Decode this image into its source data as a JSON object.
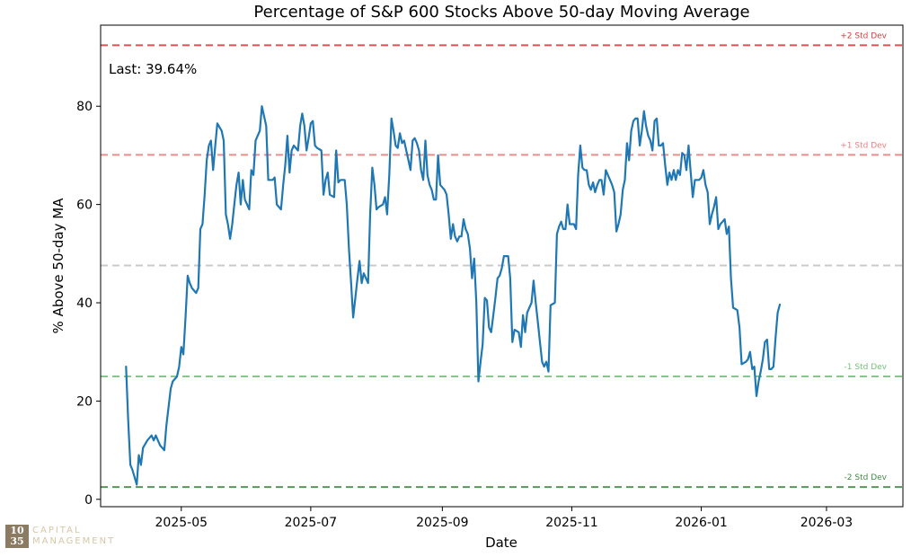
{
  "chart_data": {
    "type": "line",
    "title": "Percentage of S&P 600 Stocks Above 50-day Moving Average",
    "xlabel": "Date",
    "ylabel": "% Above 50-day MA",
    "ylim": [
      -1.5,
      96.5
    ],
    "xlim": [
      -12,
      366
    ],
    "yticks": [
      0,
      20,
      40,
      60,
      80
    ],
    "xticks": [
      {
        "label": "2025-05",
        "day": 26
      },
      {
        "label": "2025-07",
        "day": 87
      },
      {
        "label": "2025-09",
        "day": 149
      },
      {
        "label": "2025-11",
        "day": 210
      },
      {
        "label": "2026-01",
        "day": 271
      },
      {
        "label": "2026-03",
        "day": 330
      }
    ],
    "x_origin": "2025-04-05",
    "annotation": "Last: 39.64%",
    "reference_lines": [
      {
        "name": "+2 Std Dev",
        "value": 92.4,
        "color": "#d62728",
        "label": "+2 Std Dev"
      },
      {
        "name": "+1 Std Dev",
        "value": 70.1,
        "color": "#e57373",
        "label": "+1 Std Dev"
      },
      {
        "name": "Mean",
        "value": 47.6,
        "color": "#bdbdbd",
        "label": ""
      },
      {
        "name": "-1 Std Dev",
        "value": 25.0,
        "color": "#66bb6a",
        "label": "-1 Std Dev"
      },
      {
        "name": "-2 Std Dev",
        "value": 2.5,
        "color": "#2e7d32",
        "label": "-2 Std Dev"
      }
    ],
    "series": [
      {
        "name": "% Above 50-day MA",
        "color": "#1f77b4",
        "points": [
          [
            0,
            27
          ],
          [
            1,
            16
          ],
          [
            2,
            7
          ],
          [
            3,
            6
          ],
          [
            5,
            3
          ],
          [
            6,
            9
          ],
          [
            7,
            7
          ],
          [
            8,
            10.5
          ],
          [
            10,
            12
          ],
          [
            12,
            13
          ],
          [
            13,
            12
          ],
          [
            14,
            13
          ],
          [
            16,
            11
          ],
          [
            18,
            10
          ],
          [
            19,
            15
          ],
          [
            21,
            22.5
          ],
          [
            22,
            24
          ],
          [
            24,
            25
          ],
          [
            25,
            27
          ],
          [
            26,
            31
          ],
          [
            27,
            29.5
          ],
          [
            28,
            37
          ],
          [
            29,
            45.5
          ],
          [
            30,
            44
          ],
          [
            31,
            43
          ],
          [
            33,
            42
          ],
          [
            34,
            43
          ],
          [
            35,
            55
          ],
          [
            36,
            56
          ],
          [
            37,
            62
          ],
          [
            38,
            69
          ],
          [
            39,
            72
          ],
          [
            40,
            73
          ],
          [
            41,
            67
          ],
          [
            42,
            72
          ],
          [
            43,
            76.5
          ],
          [
            45,
            75
          ],
          [
            46,
            73
          ],
          [
            47,
            58
          ],
          [
            48,
            56
          ],
          [
            49,
            53
          ],
          [
            50,
            56
          ],
          [
            51,
            60
          ],
          [
            52,
            64
          ],
          [
            53,
            66.5
          ],
          [
            54,
            60
          ],
          [
            55,
            65
          ],
          [
            56,
            61
          ],
          [
            58,
            59
          ],
          [
            59,
            67
          ],
          [
            60,
            66
          ],
          [
            61,
            73
          ],
          [
            62,
            74
          ],
          [
            63,
            75
          ],
          [
            64,
            80
          ],
          [
            65,
            78
          ],
          [
            66,
            76
          ],
          [
            67,
            65
          ],
          [
            69,
            65
          ],
          [
            70,
            65.5
          ],
          [
            71,
            60
          ],
          [
            73,
            59
          ],
          [
            74,
            64
          ],
          [
            75,
            68
          ],
          [
            76,
            74
          ],
          [
            77,
            66.5
          ],
          [
            78,
            71
          ],
          [
            79,
            72
          ],
          [
            81,
            71
          ],
          [
            82,
            76
          ],
          [
            83,
            78.5
          ],
          [
            84,
            76
          ],
          [
            85,
            71
          ],
          [
            86,
            73.5
          ],
          [
            87,
            76.5
          ],
          [
            88,
            77
          ],
          [
            89,
            72
          ],
          [
            90,
            71.5
          ],
          [
            92,
            71
          ],
          [
            93,
            62
          ],
          [
            94,
            65
          ],
          [
            95,
            66.5
          ],
          [
            96,
            62
          ],
          [
            98,
            61.5
          ],
          [
            99,
            71
          ],
          [
            100,
            64.5
          ],
          [
            101,
            65
          ],
          [
            103,
            65
          ],
          [
            104,
            60
          ],
          [
            105,
            51
          ],
          [
            106,
            44
          ],
          [
            107,
            37
          ],
          [
            108,
            41
          ],
          [
            109,
            45
          ],
          [
            110,
            48.5
          ],
          [
            111,
            44
          ],
          [
            112,
            46
          ],
          [
            113,
            45
          ],
          [
            114,
            44
          ],
          [
            115,
            58
          ],
          [
            116,
            67.5
          ],
          [
            117,
            64
          ],
          [
            118,
            59
          ],
          [
            119,
            59.5
          ],
          [
            121,
            60
          ],
          [
            122,
            61.5
          ],
          [
            123,
            58
          ],
          [
            124,
            66
          ],
          [
            125,
            77.5
          ],
          [
            126,
            75
          ],
          [
            127,
            72
          ],
          [
            128,
            71.5
          ],
          [
            129,
            74.5
          ],
          [
            130,
            72.5
          ],
          [
            131,
            73
          ],
          [
            132,
            71
          ],
          [
            133,
            69
          ],
          [
            134,
            67
          ],
          [
            135,
            73
          ],
          [
            136,
            73.5
          ],
          [
            137,
            72.5
          ],
          [
            138,
            71
          ],
          [
            139,
            67
          ],
          [
            140,
            65
          ],
          [
            141,
            73
          ],
          [
            142,
            66
          ],
          [
            143,
            64
          ],
          [
            144,
            63
          ],
          [
            145,
            61
          ],
          [
            146,
            61
          ],
          [
            147,
            70
          ],
          [
            148,
            64
          ],
          [
            150,
            63
          ],
          [
            151,
            62
          ],
          [
            152,
            58
          ],
          [
            153,
            53
          ],
          [
            154,
            56
          ],
          [
            155,
            53.5
          ],
          [
            156,
            52.5
          ],
          [
            157,
            53.5
          ],
          [
            158,
            53.5
          ],
          [
            159,
            57
          ],
          [
            160,
            55
          ],
          [
            161,
            54
          ],
          [
            162,
            51
          ],
          [
            163,
            45
          ],
          [
            164,
            49
          ],
          [
            165,
            40
          ],
          [
            166,
            24
          ],
          [
            167,
            28
          ],
          [
            168,
            31.5
          ],
          [
            169,
            41
          ],
          [
            170,
            40.5
          ],
          [
            171,
            35
          ],
          [
            172,
            34
          ],
          [
            173,
            37.5
          ],
          [
            174,
            41
          ],
          [
            175,
            45
          ],
          [
            176,
            45.5
          ],
          [
            177,
            47
          ],
          [
            178,
            49.5
          ],
          [
            180,
            49.5
          ],
          [
            181,
            45
          ],
          [
            182,
            32
          ],
          [
            183,
            34.5
          ],
          [
            185,
            34
          ],
          [
            186,
            31
          ],
          [
            187,
            37.5
          ],
          [
            188,
            34
          ],
          [
            189,
            38
          ],
          [
            190,
            39
          ],
          [
            191,
            40
          ],
          [
            192,
            44.5
          ],
          [
            193,
            40
          ],
          [
            194,
            36
          ],
          [
            195,
            32
          ],
          [
            196,
            28
          ],
          [
            197,
            27
          ],
          [
            198,
            28
          ],
          [
            199,
            26
          ],
          [
            200,
            39.5
          ],
          [
            202,
            40
          ],
          [
            203,
            54
          ],
          [
            204,
            55.5
          ],
          [
            205,
            56.5
          ],
          [
            206,
            55
          ],
          [
            207,
            55
          ],
          [
            208,
            60
          ],
          [
            209,
            56
          ],
          [
            211,
            56
          ],
          [
            212,
            55
          ],
          [
            213,
            66
          ],
          [
            214,
            72
          ],
          [
            215,
            67.5
          ],
          [
            216,
            67
          ],
          [
            217,
            67
          ],
          [
            218,
            64
          ],
          [
            219,
            63
          ],
          [
            220,
            64.5
          ],
          [
            221,
            62.5
          ],
          [
            222,
            64
          ],
          [
            223,
            65
          ],
          [
            224,
            65
          ],
          [
            225,
            62
          ],
          [
            226,
            67
          ],
          [
            227,
            66
          ],
          [
            228,
            65
          ],
          [
            229,
            64
          ],
          [
            230,
            62.5
          ],
          [
            231,
            54.5
          ],
          [
            232,
            56
          ],
          [
            233,
            58
          ],
          [
            234,
            63
          ],
          [
            235,
            65
          ],
          [
            236,
            72.5
          ],
          [
            237,
            69
          ],
          [
            238,
            75
          ],
          [
            239,
            77
          ],
          [
            240,
            77.5
          ],
          [
            241,
            77.5
          ],
          [
            242,
            72
          ],
          [
            243,
            75
          ],
          [
            244,
            79
          ],
          [
            245,
            76
          ],
          [
            246,
            74
          ],
          [
            247,
            73
          ],
          [
            248,
            71
          ],
          [
            249,
            77
          ],
          [
            250,
            77.5
          ],
          [
            251,
            72
          ],
          [
            252,
            72
          ],
          [
            253,
            72.5
          ],
          [
            254,
            68
          ],
          [
            255,
            64
          ],
          [
            256,
            66.5
          ],
          [
            257,
            65
          ],
          [
            258,
            67
          ],
          [
            259,
            65
          ],
          [
            260,
            67
          ],
          [
            261,
            66
          ],
          [
            262,
            70.5
          ],
          [
            263,
            70
          ],
          [
            264,
            67
          ],
          [
            265,
            72
          ],
          [
            266,
            66.5
          ],
          [
            267,
            61.5
          ],
          [
            268,
            65
          ],
          [
            270,
            65
          ],
          [
            271,
            65.5
          ],
          [
            272,
            67
          ],
          [
            273,
            64
          ],
          [
            274,
            62.5
          ],
          [
            275,
            56
          ],
          [
            276,
            58
          ],
          [
            277,
            59.5
          ],
          [
            278,
            61.5
          ],
          [
            279,
            55
          ],
          [
            280,
            56
          ],
          [
            281,
            56.5
          ],
          [
            282,
            57
          ],
          [
            283,
            54
          ],
          [
            284,
            55.5
          ],
          [
            285,
            45
          ],
          [
            286,
            39
          ],
          [
            288,
            38.5
          ],
          [
            289,
            35
          ],
          [
            290,
            27.5
          ],
          [
            292,
            28
          ],
          [
            293,
            28.5
          ],
          [
            294,
            30
          ],
          [
            295,
            26.5
          ],
          [
            296,
            27
          ],
          [
            297,
            21
          ],
          [
            298,
            24
          ],
          [
            299,
            26
          ],
          [
            300,
            28.5
          ],
          [
            301,
            32
          ],
          [
            302,
            32.5
          ],
          [
            303,
            26.5
          ],
          [
            304,
            26.5
          ],
          [
            305,
            27
          ],
          [
            306,
            33
          ],
          [
            307,
            38
          ],
          [
            308,
            39.64
          ]
        ]
      }
    ]
  },
  "watermark": {
    "mark_line1": "10",
    "mark_line2": "35",
    "text_line1": "CAPITAL",
    "text_line2": "MANAGEMENT"
  }
}
